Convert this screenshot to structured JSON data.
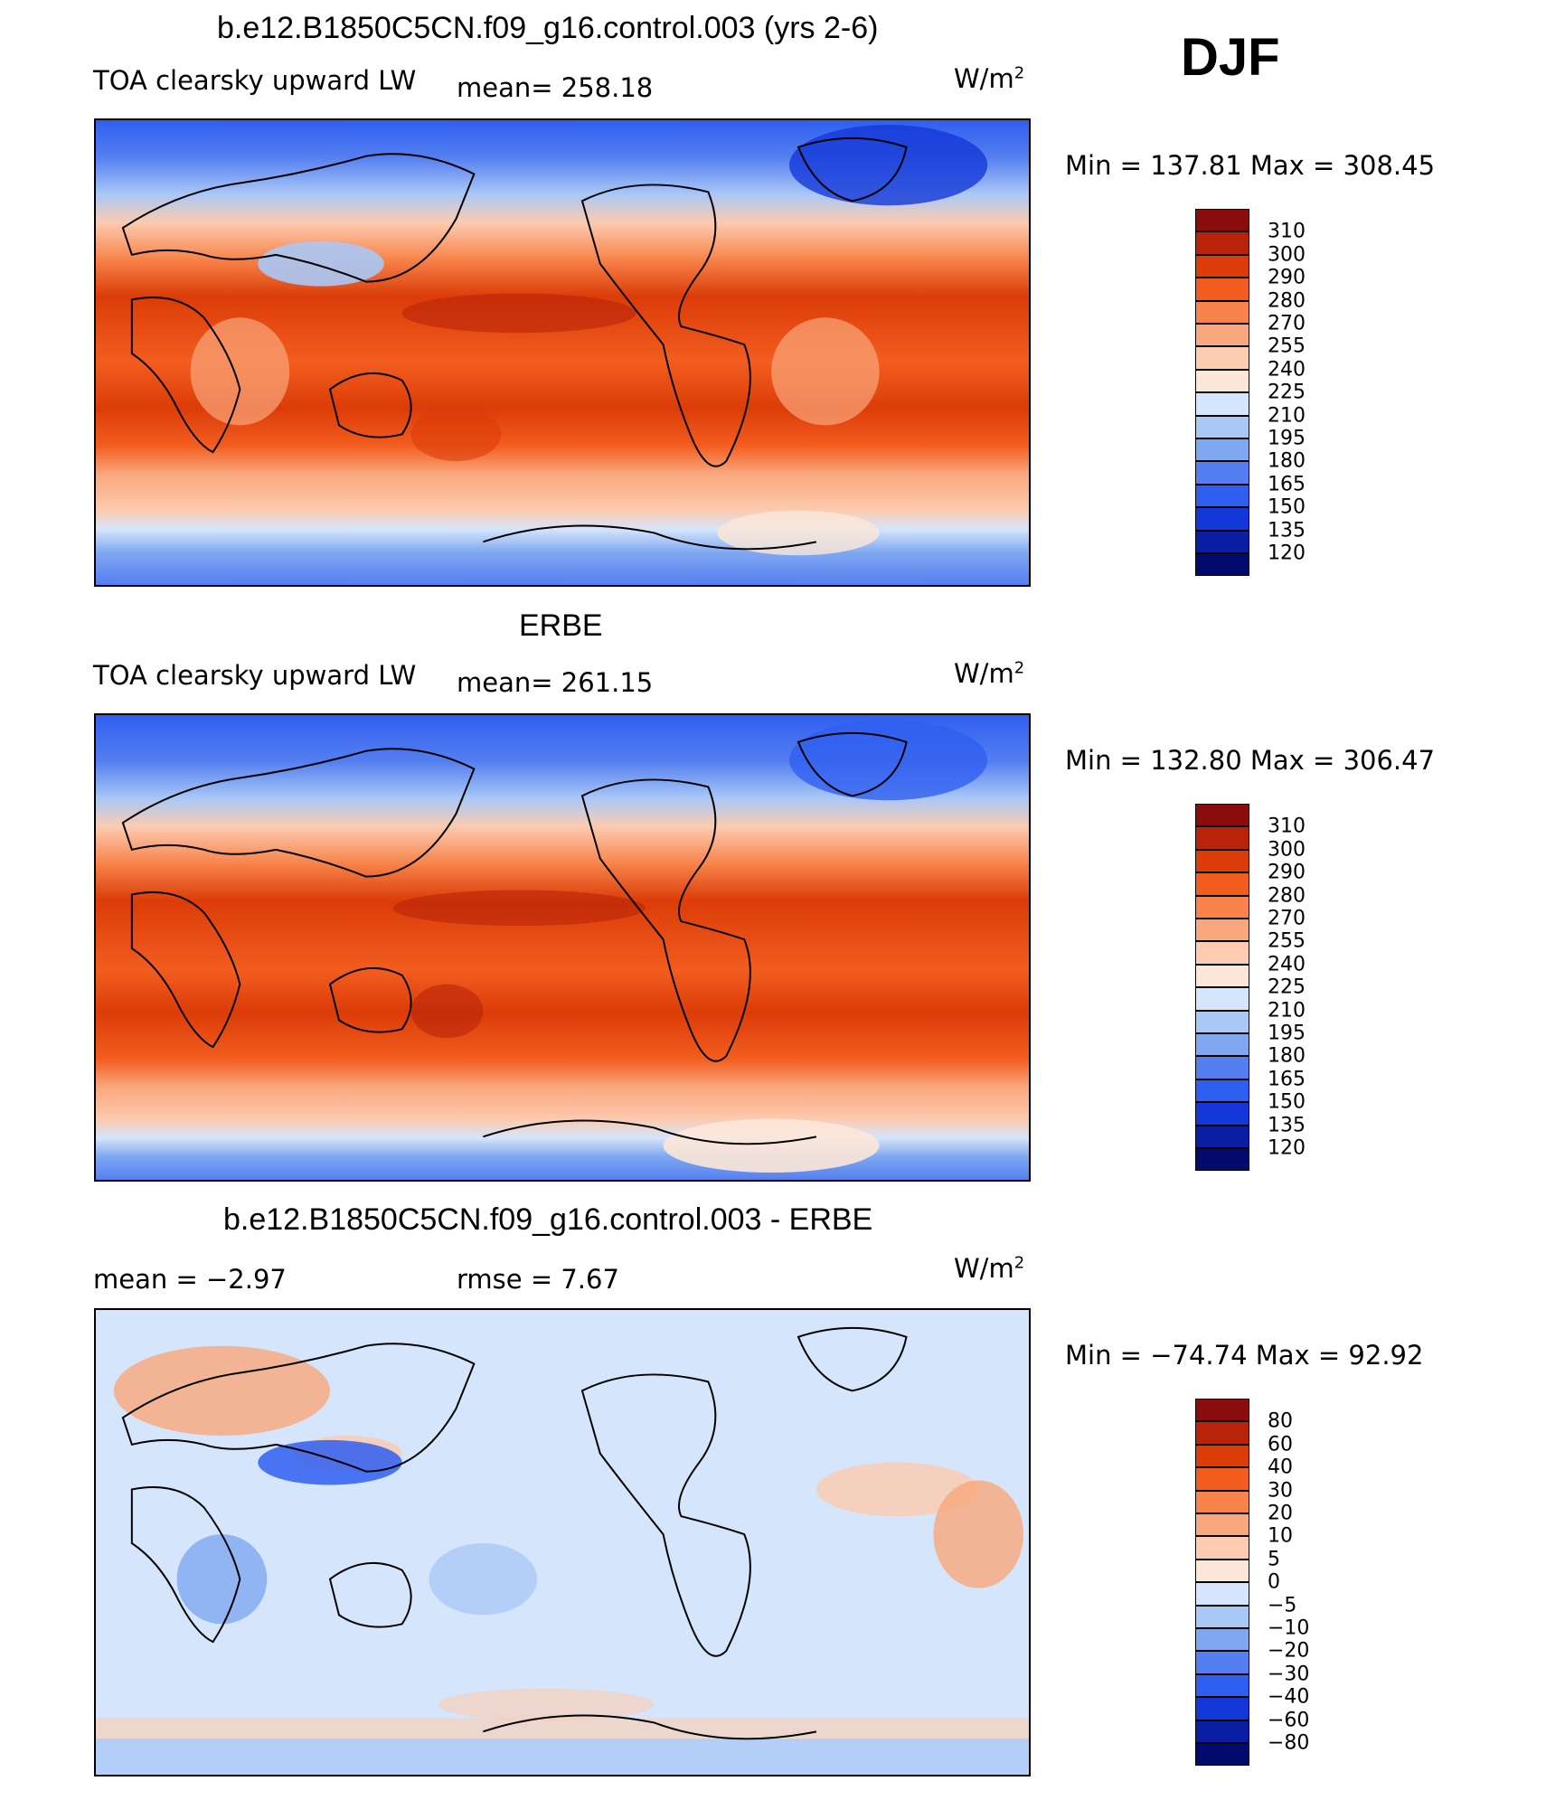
{
  "season": "DJF",
  "units_base": "W/m",
  "units_exp": "2",
  "panels": [
    {
      "id": "model",
      "title": "b.e12.B1850C5CN.f09_g16.control.003 (yrs 2-6)",
      "variable": "TOA clearsky upward LW",
      "stat_text": "mean=  258.18",
      "minmax_text": "Min  =  137.81  Max  =  308.45",
      "colorbar": {
        "levels": [
          "310",
          "300",
          "290",
          "280",
          "270",
          "255",
          "240",
          "225",
          "210",
          "195",
          "180",
          "165",
          "150",
          "135",
          "120"
        ],
        "colors": [
          "#8b0c0c",
          "#b8240a",
          "#dc3c08",
          "#f25d1f",
          "#f7834a",
          "#f9a77c",
          "#fccbb0",
          "#fde7d8",
          "#d5e5fb",
          "#aac8f6",
          "#7fa8f1",
          "#557ff0",
          "#2f5ff0",
          "#1438d8",
          "#0a1ea4",
          "#030a6e"
        ]
      }
    },
    {
      "id": "obs",
      "title": "ERBE",
      "variable": "TOA clearsky upward LW",
      "stat_text": "mean=  261.15",
      "minmax_text": "Min  =  132.80  Max  =  306.47",
      "colorbar": {
        "levels": [
          "310",
          "300",
          "290",
          "280",
          "270",
          "255",
          "240",
          "225",
          "210",
          "195",
          "180",
          "165",
          "150",
          "135",
          "120"
        ],
        "colors": [
          "#8b0c0c",
          "#b8240a",
          "#dc3c08",
          "#f25d1f",
          "#f7834a",
          "#f9a77c",
          "#fccbb0",
          "#fde7d8",
          "#d5e5fb",
          "#aac8f6",
          "#7fa8f1",
          "#557ff0",
          "#2f5ff0",
          "#1438d8",
          "#0a1ea4",
          "#030a6e"
        ]
      }
    },
    {
      "id": "diff",
      "title": "b.e12.B1850C5CN.f09_g16.control.003 - ERBE",
      "mean_text": "mean  =     −2.97",
      "rmse_text": "rmse  =      7.67",
      "minmax_text": "Min  =  −74.74  Max  =    92.92",
      "colorbar": {
        "levels": [
          "80",
          "60",
          "40",
          "30",
          "20",
          "10",
          "5",
          "0",
          "−5",
          "−10",
          "−20",
          "−30",
          "−40",
          "−60",
          "−80"
        ],
        "colors": [
          "#8b0c0c",
          "#b8240a",
          "#dc3c08",
          "#f25d1f",
          "#f7834a",
          "#f9a77c",
          "#fccbb0",
          "#fde7d8",
          "#d5e5fb",
          "#aac8f6",
          "#7fa8f1",
          "#557ff0",
          "#2f5ff0",
          "#1438d8",
          "#0a1ea4",
          "#030a6e"
        ]
      }
    }
  ]
}
